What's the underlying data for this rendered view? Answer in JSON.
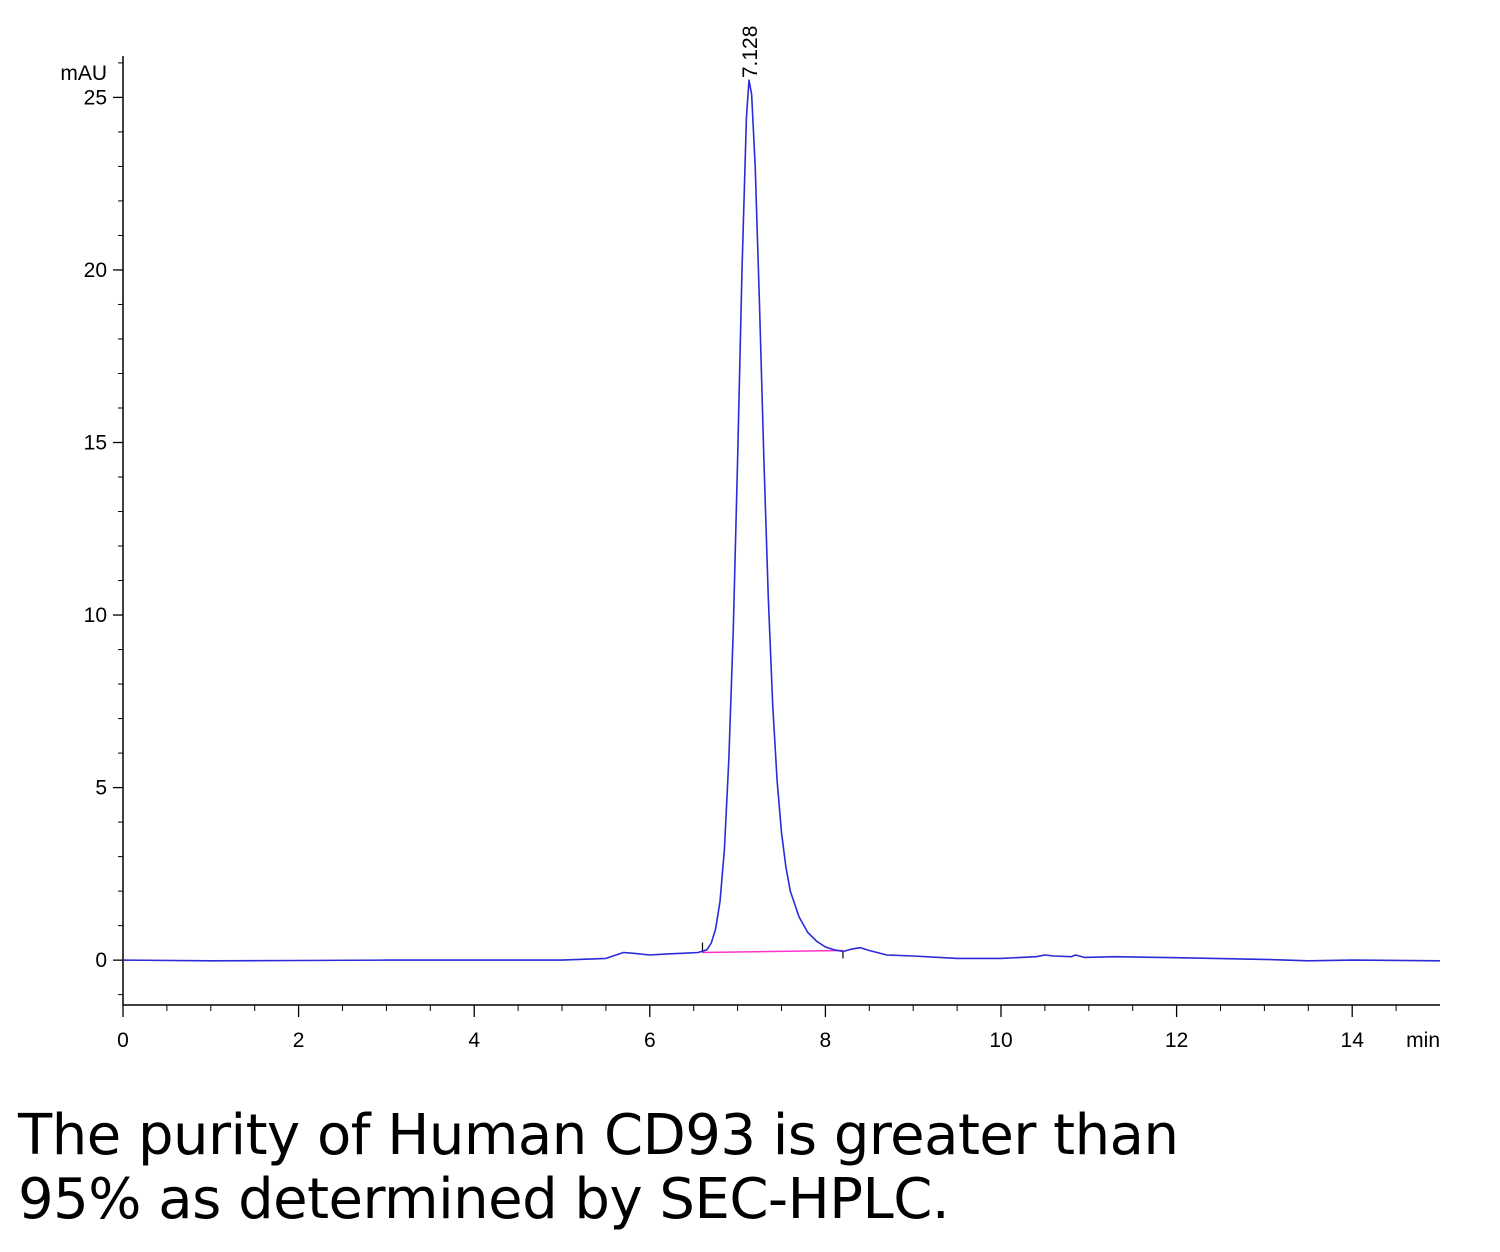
{
  "chart_data": {
    "type": "line",
    "xlabel": "min",
    "ylabel": "mAU",
    "xlim": [
      0,
      15
    ],
    "ylim": [
      -1.3,
      26.2
    ],
    "x_ticks": [
      0,
      2,
      4,
      6,
      8,
      10,
      12,
      14
    ],
    "y_ticks": [
      0,
      5,
      10,
      15,
      20,
      25
    ],
    "x_tick_labels": [
      "0",
      "2",
      "4",
      "6",
      "8",
      "10",
      "12",
      "14"
    ],
    "y_tick_labels": [
      "0",
      "5",
      "10",
      "15",
      "20",
      "25"
    ],
    "colors": {
      "trace": "#2b2bd8",
      "baseline": "#ff33cc",
      "axis": "#000000"
    },
    "series": [
      {
        "color": "#2b2bd8",
        "points": [
          [
            0.0,
            0.0
          ],
          [
            1.0,
            -0.02
          ],
          [
            2.0,
            -0.01
          ],
          [
            3.0,
            0.0
          ],
          [
            4.0,
            0.0
          ],
          [
            5.0,
            0.0
          ],
          [
            5.5,
            0.05
          ],
          [
            5.7,
            0.22
          ],
          [
            5.8,
            0.2
          ],
          [
            6.0,
            0.15
          ],
          [
            6.2,
            0.18
          ],
          [
            6.4,
            0.2
          ],
          [
            6.55,
            0.22
          ],
          [
            6.65,
            0.3
          ],
          [
            6.7,
            0.5
          ],
          [
            6.75,
            0.9
          ],
          [
            6.8,
            1.7
          ],
          [
            6.85,
            3.2
          ],
          [
            6.9,
            5.8
          ],
          [
            6.95,
            9.5
          ],
          [
            7.0,
            14.5
          ],
          [
            7.05,
            20.0
          ],
          [
            7.1,
            24.4
          ],
          [
            7.13,
            25.5
          ],
          [
            7.16,
            25.1
          ],
          [
            7.2,
            23.0
          ],
          [
            7.25,
            19.0
          ],
          [
            7.3,
            14.5
          ],
          [
            7.35,
            10.5
          ],
          [
            7.4,
            7.4
          ],
          [
            7.45,
            5.2
          ],
          [
            7.5,
            3.7
          ],
          [
            7.55,
            2.7
          ],
          [
            7.6,
            2.0
          ],
          [
            7.7,
            1.25
          ],
          [
            7.8,
            0.8
          ],
          [
            7.9,
            0.55
          ],
          [
            8.0,
            0.38
          ],
          [
            8.1,
            0.3
          ],
          [
            8.2,
            0.25
          ],
          [
            8.3,
            0.32
          ],
          [
            8.4,
            0.36
          ],
          [
            8.5,
            0.28
          ],
          [
            8.7,
            0.15
          ],
          [
            9.0,
            0.12
          ],
          [
            9.5,
            0.05
          ],
          [
            10.0,
            0.05
          ],
          [
            10.4,
            0.1
          ],
          [
            10.5,
            0.15
          ],
          [
            10.6,
            0.12
          ],
          [
            10.8,
            0.1
          ],
          [
            10.85,
            0.15
          ],
          [
            10.95,
            0.08
          ],
          [
            11.3,
            0.1
          ],
          [
            12.0,
            0.07
          ],
          [
            13.0,
            0.02
          ],
          [
            13.5,
            -0.02
          ],
          [
            14.0,
            0.0
          ],
          [
            15.0,
            -0.02
          ]
        ]
      }
    ],
    "baseline_segment": [
      [
        6.6,
        0.22
      ],
      [
        8.2,
        0.28
      ]
    ],
    "peak": {
      "x": 7.128,
      "y": 25.5,
      "label": "7.128"
    },
    "grid": false,
    "legend": "none"
  },
  "caption": {
    "line1": "The purity of Human CD93 is greater than",
    "line2": "95% as determined by SEC-HPLC."
  }
}
